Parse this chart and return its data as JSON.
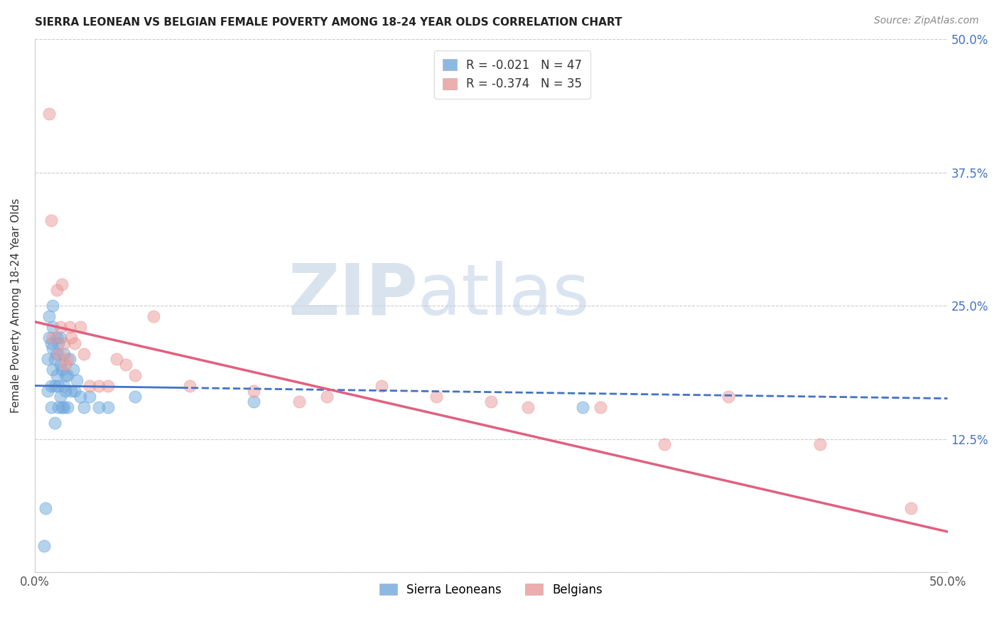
{
  "title": "SIERRA LEONEAN VS BELGIAN FEMALE POVERTY AMONG 18-24 YEAR OLDS CORRELATION CHART",
  "source": "Source: ZipAtlas.com",
  "ylabel": "Female Poverty Among 18-24 Year Olds",
  "xlim": [
    0,
    0.5
  ],
  "ylim": [
    0,
    0.5
  ],
  "xticks": [
    0.0,
    0.125,
    0.25,
    0.375,
    0.5
  ],
  "yticks": [
    0.0,
    0.125,
    0.25,
    0.375,
    0.5
  ],
  "xticklabels": [
    "0.0%",
    "",
    "",
    "",
    "50.0%"
  ],
  "yticklabels_right": [
    "",
    "12.5%",
    "25.0%",
    "37.5%",
    "50.0%"
  ],
  "sierra_color": "#6fa8dc",
  "belgian_color": "#ea9999",
  "sierra_line_color": "#4472c4",
  "belgian_line_color": "#e06080",
  "watermark_zip": "ZIP",
  "watermark_atlas": "atlas",
  "sierra_line_x0": 0.0,
  "sierra_line_y0": 0.175,
  "sierra_line_x1": 0.5,
  "sierra_line_y1": 0.163,
  "belgian_line_x0": 0.0,
  "belgian_line_y0": 0.235,
  "belgian_line_x1": 0.5,
  "belgian_line_y1": 0.038,
  "sierra_x": [
    0.005,
    0.006,
    0.007,
    0.007,
    0.008,
    0.008,
    0.009,
    0.009,
    0.009,
    0.01,
    0.01,
    0.01,
    0.01,
    0.011,
    0.011,
    0.011,
    0.012,
    0.012,
    0.012,
    0.013,
    0.013,
    0.013,
    0.014,
    0.014,
    0.014,
    0.015,
    0.015,
    0.016,
    0.016,
    0.016,
    0.017,
    0.017,
    0.018,
    0.018,
    0.019,
    0.02,
    0.021,
    0.022,
    0.023,
    0.025,
    0.027,
    0.03,
    0.035,
    0.04,
    0.055,
    0.12,
    0.3
  ],
  "sierra_y": [
    0.025,
    0.06,
    0.17,
    0.2,
    0.22,
    0.24,
    0.155,
    0.175,
    0.215,
    0.19,
    0.21,
    0.23,
    0.25,
    0.14,
    0.175,
    0.2,
    0.185,
    0.205,
    0.22,
    0.155,
    0.175,
    0.215,
    0.165,
    0.195,
    0.22,
    0.155,
    0.19,
    0.155,
    0.175,
    0.205,
    0.17,
    0.185,
    0.155,
    0.185,
    0.2,
    0.17,
    0.19,
    0.17,
    0.18,
    0.165,
    0.155,
    0.165,
    0.155,
    0.155,
    0.165,
    0.16,
    0.155
  ],
  "belgian_x": [
    0.008,
    0.009,
    0.01,
    0.012,
    0.013,
    0.014,
    0.015,
    0.016,
    0.017,
    0.018,
    0.019,
    0.02,
    0.022,
    0.025,
    0.027,
    0.03,
    0.035,
    0.04,
    0.045,
    0.05,
    0.055,
    0.065,
    0.085,
    0.12,
    0.145,
    0.16,
    0.19,
    0.22,
    0.25,
    0.27,
    0.31,
    0.345,
    0.38,
    0.43,
    0.48
  ],
  "belgian_y": [
    0.43,
    0.33,
    0.22,
    0.265,
    0.205,
    0.23,
    0.27,
    0.215,
    0.195,
    0.2,
    0.23,
    0.22,
    0.215,
    0.23,
    0.205,
    0.175,
    0.175,
    0.175,
    0.2,
    0.195,
    0.185,
    0.24,
    0.175,
    0.17,
    0.16,
    0.165,
    0.175,
    0.165,
    0.16,
    0.155,
    0.155,
    0.12,
    0.165,
    0.12,
    0.06
  ]
}
